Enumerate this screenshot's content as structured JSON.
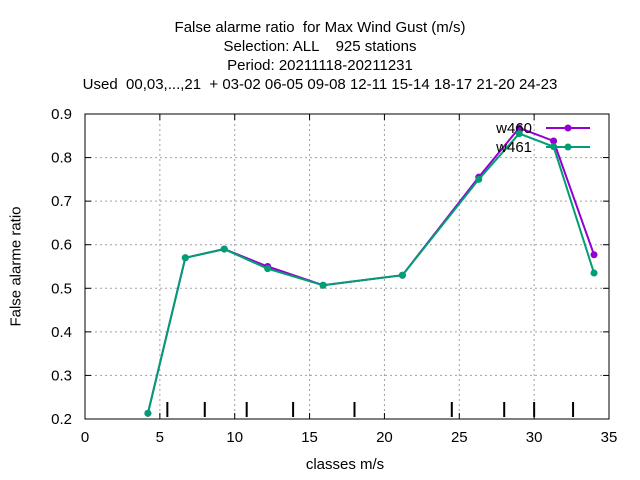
{
  "chart_data": {
    "type": "line",
    "title_lines": [
      "False alarme ratio  for Max Wind Gust (m/s)",
      "Selection: ALL    925 stations",
      "Period: 20211118-20211231",
      "Used  00,03,...,21  + 03-02 06-05 09-08 12-11 15-14 18-17 21-20 24-23"
    ],
    "xlabel": "classes m/s",
    "ylabel": "False alarme ratio",
    "xlim": [
      0,
      35
    ],
    "ylim": [
      0.2,
      0.9
    ],
    "x_ticks": [
      0,
      5,
      10,
      15,
      20,
      25,
      30,
      35
    ],
    "y_ticks": [
      0.2,
      0.3,
      0.4,
      0.5,
      0.6,
      0.7,
      0.8,
      0.9
    ],
    "grid": true,
    "legend_position": "top-right",
    "class_boundaries": [
      5.5,
      8,
      10.8,
      13.9,
      18,
      24.5,
      28,
      30,
      32.6
    ],
    "series": [
      {
        "name": "w460",
        "color": "#9400d3",
        "x": [
          4.2,
          6.7,
          9.3,
          12.2,
          15.9,
          21.2,
          26.3,
          29,
          31.3,
          34
        ],
        "values": [
          0.213,
          0.57,
          0.59,
          0.55,
          0.507,
          0.53,
          0.755,
          0.868,
          0.838,
          0.577
        ]
      },
      {
        "name": "w461",
        "color": "#009e73",
        "x": [
          4.2,
          6.7,
          9.3,
          12.2,
          15.9,
          21.2,
          26.3,
          29,
          31.3,
          34
        ],
        "values": [
          0.213,
          0.57,
          0.59,
          0.545,
          0.507,
          0.53,
          0.75,
          0.855,
          0.825,
          0.535
        ]
      }
    ]
  }
}
